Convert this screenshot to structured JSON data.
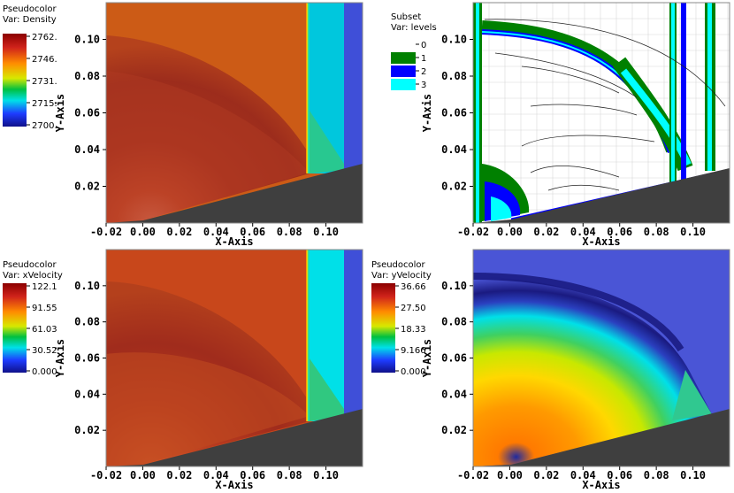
{
  "chart_data": [
    {
      "type": "heatmap",
      "variable": "Density",
      "xlabel": "X-Axis",
      "ylabel": "Y-Axis",
      "xlim": [
        -0.02,
        0.12
      ],
      "ylim": [
        0.0,
        0.12
      ],
      "x_ticks": [
        "-0.02",
        "0.00",
        "0.02",
        "0.04",
        "0.06",
        "0.08",
        "0.10"
      ],
      "y_ticks": [
        "0.02",
        "0.04",
        "0.06",
        "0.08",
        "0.10"
      ],
      "legend": {
        "title": "Pseudocolor",
        "var": "Var: Density",
        "ticks": [
          "2762.",
          "2746.",
          "2731.",
          "2715.",
          "2700."
        ]
      },
      "colors": {
        "bulk": "#cc5b16",
        "shocked": "#9e2d1c",
        "band1": "#ffd400",
        "band2": "#00d8e6",
        "band3": "#3f4fd8",
        "wall": "#3f3f3f"
      }
    },
    {
      "type": "heatmap",
      "variable": "levels",
      "xlabel": "X-Axis",
      "ylabel": "Y-Axis",
      "xlim": [
        -0.02,
        0.12
      ],
      "ylim": [
        0.0,
        0.12
      ],
      "x_ticks": [
        "-0.02",
        "0.00",
        "0.02",
        "0.04",
        "0.06",
        "0.08",
        "0.10"
      ],
      "y_ticks": [
        "0.02",
        "0.04",
        "0.06",
        "0.08",
        "0.10"
      ],
      "legend": {
        "title": "Subset",
        "var": "Var: levels",
        "entries": [
          "0",
          "1",
          "2",
          "3"
        ],
        "entry_colors": [
          "#ffffff",
          "#008000",
          "#0000ff",
          "#00ffff"
        ]
      },
      "colors": {
        "wall": "#3f3f3f",
        "grid": "#d8d8d8"
      }
    },
    {
      "type": "heatmap",
      "variable": "xVelocity",
      "xlabel": "X-Axis",
      "ylabel": "Y-Axis",
      "xlim": [
        -0.02,
        0.12
      ],
      "ylim": [
        0.0,
        0.12
      ],
      "x_ticks": [
        "-0.02",
        "0.00",
        "0.02",
        "0.04",
        "0.06",
        "0.08",
        "0.10"
      ],
      "y_ticks": [
        "0.02",
        "0.04",
        "0.06",
        "0.08",
        "0.10"
      ],
      "legend": {
        "title": "Pseudocolor",
        "var": "Var: xVelocity",
        "ticks": [
          "122.1",
          "91.55",
          "61.03",
          "30.52",
          "0.000"
        ]
      },
      "colors": {
        "bulk": "#c8471b",
        "shocked": "#a13020",
        "band1": "#ffd400",
        "band2": "#00e0e8",
        "band3": "#3f4fd8",
        "wall": "#3f3f3f"
      }
    },
    {
      "type": "heatmap",
      "variable": "yVelocity",
      "xlabel": "X-Axis",
      "ylabel": "Y-Axis",
      "xlim": [
        -0.02,
        0.12
      ],
      "ylim": [
        0.0,
        0.12
      ],
      "x_ticks": [
        "-0.02",
        "0.00",
        "0.02",
        "0.04",
        "0.06",
        "0.08",
        "0.10"
      ],
      "y_ticks": [
        "0.02",
        "0.04",
        "0.06",
        "0.08",
        "0.10"
      ],
      "legend": {
        "title": "Pseudocolor",
        "var": "Var: yVelocity",
        "ticks": [
          "36.66",
          "27.50",
          "18.33",
          "9.166",
          "0.000"
        ]
      },
      "colors": {
        "bulk": "#4a55d6",
        "wall": "#3f3f3f"
      }
    }
  ]
}
